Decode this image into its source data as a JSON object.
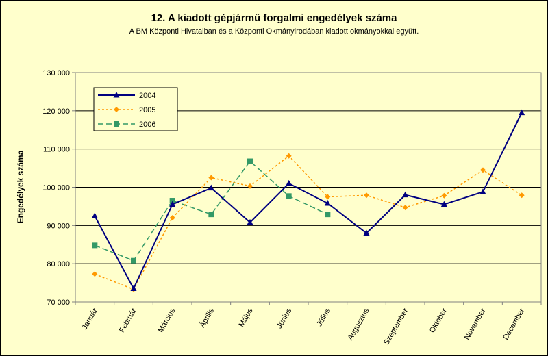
{
  "chart_data": {
    "type": "line",
    "title": "12. A  kiadott gépjármű forgalmi engedélyek száma",
    "subtitle": "A BM Központi Hivatalban és a Központi Okmányirodában kiadott okmányokkal együtt.",
    "ylabel": "Engedélyek száma",
    "xlabel": "",
    "ylim": [
      70000,
      130000
    ],
    "yticks": [
      130000,
      120000,
      110000,
      100000,
      90000,
      80000,
      70000
    ],
    "ytick_labels": [
      "130 000",
      "120 000",
      "110 000",
      "100 000",
      "90 000",
      "80 000",
      "70 000"
    ],
    "categories": [
      "Január",
      "Február",
      "Március",
      "Április",
      "Május",
      "Június",
      "Július",
      "Augusztus",
      "Szeptember",
      "Október",
      "November",
      "December"
    ],
    "grid": true,
    "legend_position": "top-left",
    "series": [
      {
        "name": "2004",
        "color": "#000080",
        "marker": "triangle",
        "style": "solid",
        "values": [
          92500,
          73500,
          95500,
          99800,
          90800,
          101000,
          95800,
          88000,
          98000,
          95500,
          98800,
          119500
        ]
      },
      {
        "name": "2005",
        "color": "#ff9900",
        "marker": "diamond",
        "style": "dotted",
        "values": [
          77300,
          73300,
          92000,
          102500,
          100300,
          108200,
          97500,
          97900,
          94700,
          97800,
          104500,
          97900
        ]
      },
      {
        "name": "2006",
        "color": "#339966",
        "marker": "square",
        "style": "dashed",
        "values": [
          84800,
          80800,
          96500,
          92900,
          106800,
          97700,
          92900,
          null,
          null,
          null,
          null,
          null
        ]
      }
    ]
  }
}
